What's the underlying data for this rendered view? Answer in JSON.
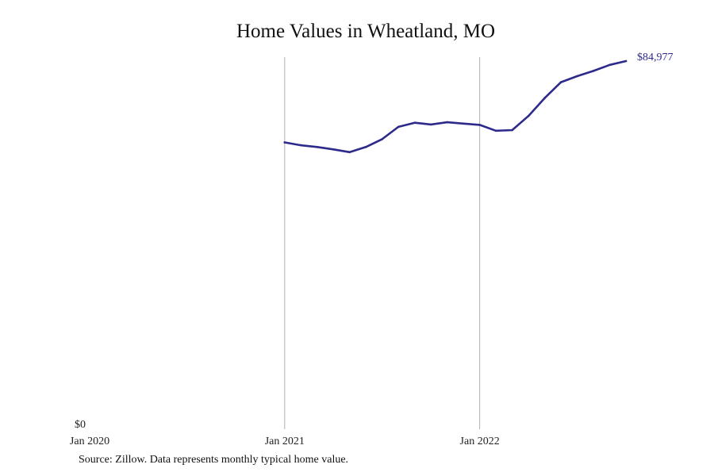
{
  "chart_data": {
    "type": "line",
    "title": "Home Values in Wheatland, MO",
    "xlabel": "",
    "ylabel": "",
    "x_range": [
      "2020-01",
      "2022-09"
    ],
    "ylim": [
      0,
      84977
    ],
    "x_ticks": [
      {
        "date": "2020-01",
        "label": "Jan 2020"
      },
      {
        "date": "2021-01",
        "label": "Jan 2021"
      },
      {
        "date": "2022-01",
        "label": "Jan 2022"
      }
    ],
    "y_ticks": [
      {
        "value": 0,
        "label": "$0"
      }
    ],
    "grid": {
      "vertical": true,
      "horizontal": false
    },
    "legend": "none",
    "line_color": "#2e2a8c",
    "grid_color": "#b0b0b0",
    "series": [
      {
        "points": [
          {
            "date": "2021-01",
            "value": 66200
          },
          {
            "date": "2021-02",
            "value": 65550
          },
          {
            "date": "2021-03",
            "value": 65150
          },
          {
            "date": "2021-04",
            "value": 64600
          },
          {
            "date": "2021-05",
            "value": 63950
          },
          {
            "date": "2021-06",
            "value": 65150
          },
          {
            "date": "2021-07",
            "value": 66950
          },
          {
            "date": "2021-08",
            "value": 69800
          },
          {
            "date": "2021-09",
            "value": 70750
          },
          {
            "date": "2021-10",
            "value": 70350
          },
          {
            "date": "2021-11",
            "value": 70850
          },
          {
            "date": "2021-12",
            "value": 70550
          },
          {
            "date": "2022-01",
            "value": 70250
          },
          {
            "date": "2022-02",
            "value": 68900
          },
          {
            "date": "2022-03",
            "value": 69050
          },
          {
            "date": "2022-04",
            "value": 72300
          },
          {
            "date": "2022-05",
            "value": 76450
          },
          {
            "date": "2022-06",
            "value": 80100
          },
          {
            "date": "2022-07",
            "value": 81500
          },
          {
            "date": "2022-08",
            "value": 82700
          },
          {
            "date": "2022-09",
            "value": 84100
          },
          {
            "date": "2022-10",
            "value": 84977
          }
        ]
      }
    ],
    "end_label": "$84,977"
  },
  "source_note": "Source: Zillow. Data represents monthly typical home value."
}
